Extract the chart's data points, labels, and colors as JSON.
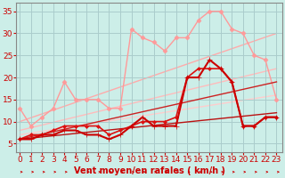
{
  "xlabel": "Vent moyen/en rafales ( km/h )",
  "background_color": "#cceee8",
  "grid_color": "#aacccc",
  "x_ticks": [
    0,
    1,
    2,
    3,
    4,
    5,
    6,
    7,
    8,
    9,
    10,
    11,
    12,
    13,
    14,
    15,
    16,
    17,
    18,
    19,
    20,
    21,
    22,
    23
  ],
  "ylim": [
    3,
    37
  ],
  "xlim": [
    -0.3,
    23.5
  ],
  "yticks": [
    5,
    10,
    15,
    20,
    25,
    30,
    35
  ],
  "lines": [
    {
      "x": [
        0,
        1,
        2,
        3,
        4,
        5,
        6,
        7,
        8,
        9,
        10,
        11,
        12,
        13,
        14,
        15,
        16,
        17,
        18,
        19,
        20,
        21,
        22,
        23
      ],
      "y": [
        13,
        9,
        11,
        13,
        19,
        15,
        15,
        15,
        13,
        13,
        31,
        29,
        28,
        26,
        29,
        29,
        33,
        35,
        35,
        31,
        30,
        25,
        24,
        15
      ],
      "color": "#ff9999",
      "lw": 1.0,
      "marker": "D",
      "ms": 2.5,
      "zorder": 2
    },
    {
      "x": [
        0,
        23
      ],
      "y": [
        10,
        30
      ],
      "color": "#ffaaaa",
      "lw": 1.0,
      "marker": null,
      "ms": 0,
      "zorder": 1
    },
    {
      "x": [
        0,
        23
      ],
      "y": [
        8,
        22
      ],
      "color": "#ffbbbb",
      "lw": 1.0,
      "marker": null,
      "ms": 0,
      "zorder": 1
    },
    {
      "x": [
        0,
        23
      ],
      "y": [
        7,
        16
      ],
      "color": "#ffcccc",
      "lw": 1.0,
      "marker": null,
      "ms": 0,
      "zorder": 1
    },
    {
      "x": [
        0,
        1,
        2,
        3,
        4,
        5,
        6,
        7,
        8,
        9,
        10,
        11,
        12,
        13,
        14,
        15,
        16,
        17,
        18,
        19,
        20,
        21,
        22,
        23
      ],
      "y": [
        6,
        6,
        7,
        7,
        8,
        8,
        7,
        7,
        6,
        7,
        9,
        11,
        9,
        9,
        9,
        20,
        20,
        24,
        22,
        19,
        9,
        9,
        11,
        11
      ],
      "color": "#cc0000",
      "lw": 1.5,
      "marker": "+",
      "ms": 4,
      "zorder": 5
    },
    {
      "x": [
        0,
        1,
        2,
        3,
        4,
        5,
        6,
        7,
        8,
        9,
        10,
        11,
        12,
        13,
        14,
        15,
        16,
        17,
        18,
        19,
        20,
        21,
        22,
        23
      ],
      "y": [
        6,
        7,
        7,
        8,
        9,
        9,
        9,
        9,
        7,
        8,
        9,
        10,
        10,
        10,
        11,
        20,
        22,
        22,
        22,
        19,
        9,
        9,
        11,
        11
      ],
      "color": "#dd1111",
      "lw": 1.2,
      "marker": "D",
      "ms": 2.0,
      "zorder": 4
    },
    {
      "x": [
        0,
        23
      ],
      "y": [
        6,
        19
      ],
      "color": "#cc2222",
      "lw": 1.0,
      "marker": null,
      "ms": 0,
      "zorder": 3
    },
    {
      "x": [
        0,
        23
      ],
      "y": [
        6,
        12
      ],
      "color": "#bb1111",
      "lw": 1.0,
      "marker": null,
      "ms": 0,
      "zorder": 3
    }
  ],
  "arrow_color": "#cc0000",
  "xlabel_color": "#cc0000",
  "xlabel_fontsize": 7,
  "tick_color": "#cc0000",
  "tick_fontsize": 6.5,
  "spine_color": "#888888"
}
